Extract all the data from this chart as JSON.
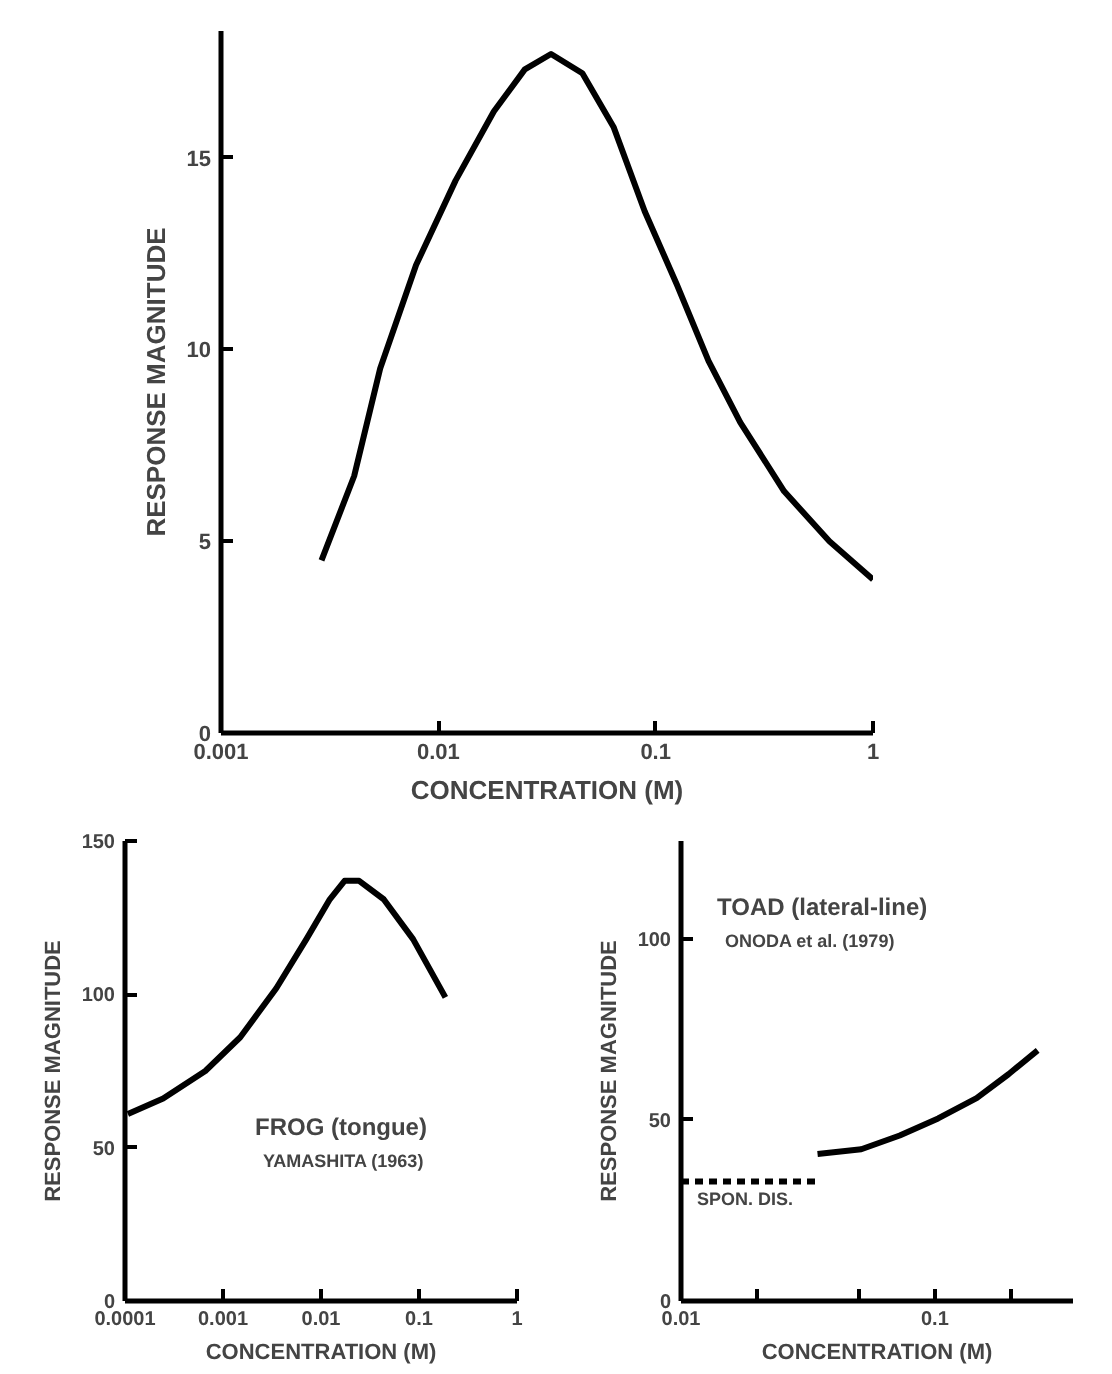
{
  "chart_data": [
    {
      "type": "line",
      "xlabel": "CONCENTRATION (M)",
      "ylabel": "RESPONSE MAGNITUDE",
      "log": "x",
      "grid": false,
      "marker": "none",
      "line_style": "solid",
      "xlim": [
        0.001,
        1
      ],
      "xticks": [
        0.001,
        0.01,
        0.1,
        1
      ],
      "ylim": [
        0,
        18.3
      ],
      "yticks": [
        0,
        5,
        10,
        15
      ],
      "series": [
        {
          "color": "#000000",
          "x": [
            0.0029,
            0.0041,
            0.0054,
            0.0079,
            0.012,
            0.018,
            0.025,
            0.033,
            0.046,
            0.064,
            0.089,
            0.125,
            0.175,
            0.245,
            0.39,
            0.63,
            1
          ],
          "values": [
            4.5,
            6.7,
            9.5,
            12.2,
            14.4,
            16.2,
            17.3,
            17.7,
            17.2,
            15.8,
            13.6,
            11.7,
            9.7,
            8.1,
            6.3,
            5.0,
            4.0
          ]
        }
      ]
    },
    {
      "type": "line",
      "xlabel": "CONCENTRATION (M)",
      "ylabel": "RESPONSE MAGNITUDE",
      "log": "x",
      "grid": false,
      "marker": "none",
      "line_style": "solid",
      "xlim": [
        0.0001,
        1
      ],
      "xticks": [
        0.0001,
        0.001,
        0.01,
        0.1,
        1
      ],
      "ylim": [
        0,
        150
      ],
      "yticks": [
        0,
        50,
        100,
        150
      ],
      "annotations": [
        "FROG (tongue)",
        "YAMASHITA (1963)"
      ],
      "series": [
        {
          "color": "#000000",
          "x": [
            0.000107,
            0.000245,
            0.00066,
            0.0015,
            0.0035,
            0.0071,
            0.0123,
            0.0174,
            0.0245,
            0.0436,
            0.087,
            0.186
          ],
          "values": [
            61,
            66,
            75,
            86,
            102,
            118,
            131,
            137,
            137,
            131,
            118,
            99
          ]
        }
      ]
    },
    {
      "type": "line",
      "xlabel": "CONCENTRATION (M)",
      "ylabel": "RESPONSE MAGNITUDE",
      "log": "x",
      "grid": false,
      "marker": "none",
      "line_style": "solid",
      "xlim": [
        0.01,
        0.35
      ],
      "xticks": [
        0.01,
        {
          "value": 0.02,
          "label": null
        },
        {
          "value": 0.05,
          "label": null
        },
        0.1,
        {
          "value": 0.2,
          "label": null
        }
      ],
      "ylim": [
        0,
        127
      ],
      "yticks": [
        0,
        50,
        100
      ],
      "annotations": [
        "TOAD (lateral-line)",
        "ONODA et al. (1979)",
        {
          "text": "SPON. DIS.",
          "x": 0.01,
          "y": 33
        }
      ],
      "series": [
        {
          "color": "#000000",
          "x": [
            0.0345,
            0.0513,
            0.0727,
            0.103,
            0.146,
            0.195,
            0.254
          ],
          "values": [
            40.6,
            41.9,
            45.7,
            50.4,
            56,
            62.6,
            69.2
          ]
        },
        {
          "color": "#000000",
          "line_style": "dashed",
          "x": [
            0.01,
            0.035
          ],
          "values": [
            33,
            33
          ]
        }
      ]
    }
  ]
}
